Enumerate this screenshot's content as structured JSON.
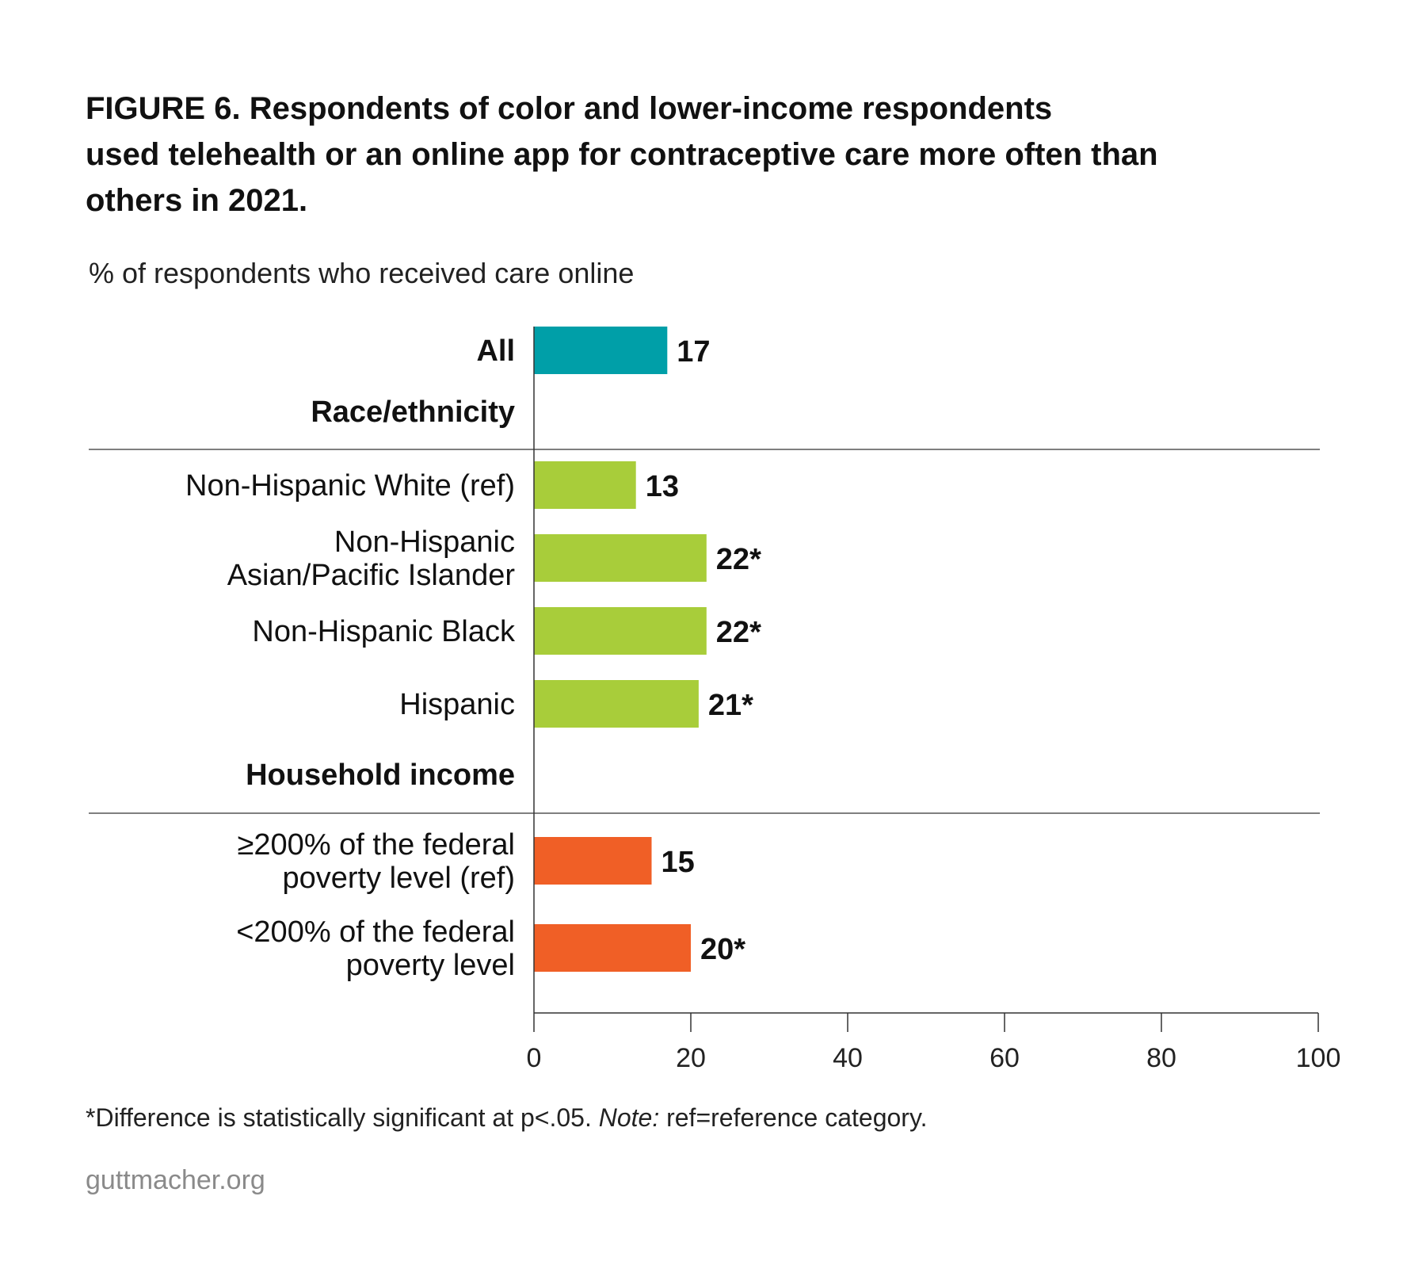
{
  "title_lines": [
    "FIGURE 6. Respondents of color and lower-income respondents",
    "used telehealth or an online app for contraceptive care more often than",
    "others in 2021."
  ],
  "subtitle": "% of respondents who received care online",
  "colors": {
    "all": "#009fa8",
    "race": "#a8cd3a",
    "income": "#f05f26",
    "axis": "#333333",
    "rule": "#555555"
  },
  "chart_data": {
    "type": "bar",
    "orientation": "horizontal",
    "xlim": [
      0,
      100
    ],
    "xticks": [
      "0",
      "20",
      "40",
      "60",
      "80",
      "100"
    ],
    "grid": false,
    "groups": [
      {
        "heading": "",
        "bars": [
          {
            "label": [
              "All"
            ],
            "value": 17,
            "value_label": "17",
            "color_key": "all",
            "bold_label": true
          }
        ]
      },
      {
        "heading": "Race/ethnicity",
        "bars": [
          {
            "label": [
              "Non-Hispanic White (ref)"
            ],
            "value": 13,
            "value_label": "13",
            "color_key": "race"
          },
          {
            "label": [
              "Non-Hispanic",
              "Asian/Pacific Islander"
            ],
            "value": 22,
            "value_label": "22*",
            "color_key": "race"
          },
          {
            "label": [
              "Non-Hispanic Black"
            ],
            "value": 22,
            "value_label": "22*",
            "color_key": "race"
          },
          {
            "label": [
              "Hispanic"
            ],
            "value": 21,
            "value_label": "21*",
            "color_key": "race"
          }
        ]
      },
      {
        "heading": "Household income",
        "bars": [
          {
            "label": [
              "≥200% of the federal",
              "poverty level (ref)"
            ],
            "value": 15,
            "value_label": "15",
            "color_key": "income"
          },
          {
            "label": [
              "<200% of the federal",
              "poverty level"
            ],
            "value": 20,
            "value_label": "20*",
            "color_key": "income"
          }
        ]
      }
    ]
  },
  "footnote": {
    "part1": "*Difference is statistically significant at p<.05. ",
    "note_label": "Note:",
    "part2": " ref=reference category."
  },
  "source": "guttmacher.org"
}
